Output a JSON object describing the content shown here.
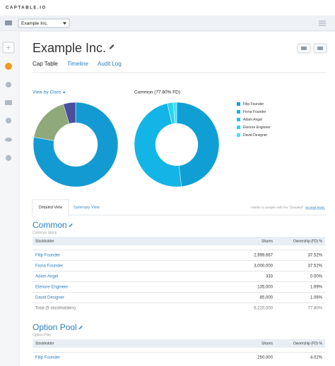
{
  "header": {
    "brand": "CAPTABLE.IO",
    "company_select": "Example Inc."
  },
  "page": {
    "title": "Example Inc.",
    "tabs": [
      "Cap Table",
      "Timeline",
      "Audit Log"
    ]
  },
  "charts": {
    "view_by": "View by Class",
    "class_donut": {
      "type": "donut",
      "values": [
        77.8,
        17.5,
        4.7
      ],
      "colors": [
        "#149ad2",
        "#8fa97a",
        "#4a4f9e"
      ]
    },
    "common_donut": {
      "type": "donut",
      "title": "Common (77.80% FD)",
      "categories": [
        "Filip Founder",
        "Fiona Founder",
        "Adam Angel",
        "Elenore Engineer",
        "David Designer"
      ],
      "values": [
        2999667,
        3000000,
        333,
        135000,
        85000
      ],
      "colors": [
        "#0f9fd4",
        "#12b5e6",
        "#1ec3ea",
        "#2bd3f0",
        "#46e2f6"
      ]
    }
  },
  "view_tabs": {
    "tabs": [
      "Detailed View",
      "Summary View"
    ],
    "note": "Visible to people with the \"Detailed\"",
    "note_link": "access level."
  },
  "tables": [
    {
      "title": "Common",
      "subtitle": "Common Stock",
      "columns": [
        "Stockholder",
        "Shares",
        "Ownership (FD) %"
      ],
      "rows": [
        [
          "Filip Founder",
          "2,999,667",
          "37.52%"
        ],
        [
          "Fiona Founder",
          "3,000,000",
          "37.52%"
        ],
        [
          "Adam Angel",
          "333",
          "0.00%"
        ],
        [
          "Elenore Engineer",
          "135,000",
          "1.69%"
        ],
        [
          "David Designer",
          "85,000",
          "1.06%"
        ]
      ],
      "total": [
        "Total (5 stockholders)",
        "6,220,000",
        "77.80%"
      ]
    },
    {
      "title": "Option Pool",
      "subtitle": "Option Plan",
      "columns": [
        "Stockholder",
        "Shares",
        "Ownership (FD) %"
      ],
      "rows": [
        [
          "Filip Founder",
          "250,000",
          "4.02%"
        ]
      ]
    }
  ]
}
